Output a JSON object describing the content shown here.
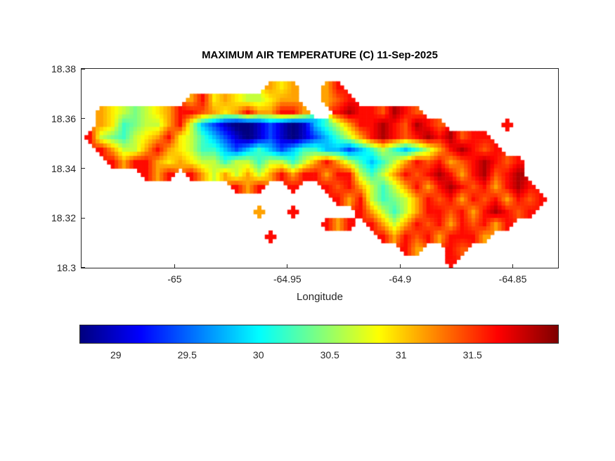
{
  "chart_data": {
    "type": "heatmap",
    "title": "MAXIMUM AIR TEMPERATURE (C) 11-Sep-2025",
    "xlabel": "Longitude",
    "ylabel": "",
    "xlim": [
      -65.0413,
      -64.8299
    ],
    "ylim": [
      18.3,
      18.38
    ],
    "x_ticks": [
      -65,
      -64.95,
      -64.9,
      -64.85
    ],
    "x_tick_labels": [
      "-65",
      "-64.95",
      "-64.9",
      "-64.85"
    ],
    "y_ticks": [
      18.3,
      18.32,
      18.34,
      18.36,
      18.38
    ],
    "y_tick_labels": [
      "18.3",
      "18.32",
      "18.34",
      "18.36",
      "18.38"
    ],
    "colormap": "jet",
    "color_range": [
      28.75,
      32.1
    ],
    "colorbar": {
      "orientation": "horizontal",
      "ticks": [
        29,
        29.5,
        30,
        30.5,
        31,
        31.5
      ],
      "tick_labels": [
        "29",
        "29.5",
        "30",
        "30.5",
        "31",
        "31.5"
      ]
    },
    "grid": {
      "description": "coarse lon-lat raster of max air temperature (C); '.' = sea (no data); rows north-to-south",
      "lon_start": -65.04,
      "lat_top": 18.375,
      "cell_deg": 0.005,
      "units": "degC",
      "value_map": {
        "B": 28.7,
        "b": 29.0,
        "c": 29.4,
        "t": 29.8,
        "g": 30.2,
        "G": 30.4,
        "y": 30.65,
        "Y": 30.9,
        "o": 31.15,
        "O": 31.4,
        "r": 31.65,
        "R": 31.95
      },
      "rows": [
        "................oYo..or...................",
        ".........orYoYyyYoo..oOr..................",
        ".oYyGyYorrOoYoroorro..rRrrORrO............",
        ".oYgGyyorytcbBBbcbBbtgyorrRrORrO.....r....",
        "ryGgyYorYygtcbBbcbBbctgyorRrOrRrROrr......",
        ".royyoroYyggtctgtctggttctgygtgyorRrOr.....",
        "..rorroYoYyygyygyygyoroygtgyorOroOrRrOr...",
        ".....ror.royoyoyororrorrygyorOrRrorROrR...",
        ".............ror..r..rOroygyororRrOrorRr..",
        "......................rorygGyorOrorOrorOr.",
        "...............o..r.....roygyorrOrorRrOr..",
        ".....................ror.royorOrorOror....",
        "................r.........rorOrorrro......",
        "............................ro..rO........",
        "................................r........."
      ]
    }
  },
  "axes": {
    "color": "#262626"
  },
  "colors": {
    "background": "#ffffff",
    "title": "#000000"
  }
}
